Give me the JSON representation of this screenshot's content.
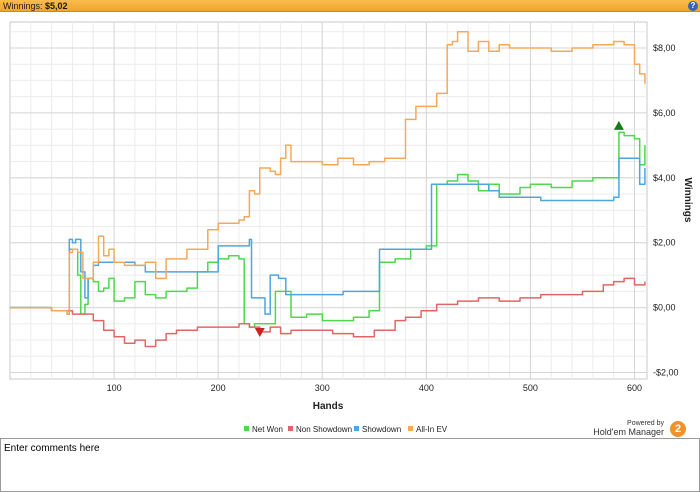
{
  "header": {
    "label": "Winnings:",
    "value": "$5,02",
    "help": "?"
  },
  "comments": {
    "placeholder": "Enter comments here"
  },
  "branding": {
    "powered_by": "Powered by",
    "product": "Hold'em Manager",
    "logo_text": "2"
  },
  "chart_data": {
    "type": "line",
    "xlabel": "Hands",
    "ylabel": "Winnings",
    "xlim": [
      0,
      612
    ],
    "ylim": [
      -2.2,
      8.8
    ],
    "x_ticks": [
      100,
      200,
      300,
      400,
      500,
      600
    ],
    "y_ticks": [
      -2,
      0,
      2,
      4,
      6,
      8
    ],
    "y_tick_labels": [
      "-$2,00",
      "$0,00",
      "$2,00",
      "$4,00",
      "$6,00",
      "$8,00"
    ],
    "x_tick_labels": [
      "100",
      "200",
      "300",
      "400",
      "500",
      "600"
    ],
    "grid": true,
    "legend_position": "bottom",
    "series": [
      {
        "name": "Net Won",
        "color": "#4cd94c",
        "x": [
          0,
          20,
          40,
          55,
          57,
          60,
          65,
          68,
          72,
          75,
          80,
          85,
          90,
          95,
          100,
          110,
          120,
          130,
          140,
          150,
          160,
          170,
          180,
          190,
          200,
          210,
          220,
          225,
          230,
          235,
          240,
          255,
          270,
          285,
          300,
          330,
          345,
          355,
          370,
          385,
          400,
          410,
          420,
          430,
          440,
          450,
          460,
          470,
          480,
          490,
          500,
          520,
          540,
          560,
          580,
          585,
          590,
          600,
          605,
          610
        ],
        "y": [
          0.0,
          0.0,
          -0.1,
          -0.2,
          1.8,
          1.8,
          1.0,
          -0.2,
          0.1,
          0.9,
          0.8,
          0.5,
          0.6,
          0.9,
          0.2,
          0.3,
          0.8,
          0.4,
          0.3,
          0.5,
          0.5,
          0.6,
          1.1,
          1.4,
          1.5,
          1.6,
          1.5,
          -0.5,
          -0.6,
          -0.5,
          -0.5,
          0.5,
          -0.3,
          -0.2,
          -0.4,
          -0.3,
          -0.1,
          1.4,
          1.5,
          1.8,
          1.9,
          3.8,
          3.9,
          4.1,
          3.9,
          3.6,
          3.8,
          3.5,
          3.5,
          3.7,
          3.8,
          3.7,
          3.9,
          4.0,
          4.0,
          5.4,
          5.3,
          5.2,
          4.4,
          5.0
        ]
      },
      {
        "name": "Non Showdown",
        "color": "#e06666",
        "x": [
          0,
          20,
          40,
          60,
          80,
          90,
          100,
          110,
          120,
          130,
          140,
          150,
          160,
          180,
          200,
          220,
          230,
          240,
          250,
          260,
          270,
          290,
          310,
          330,
          350,
          370,
          380,
          395,
          410,
          430,
          450,
          470,
          490,
          510,
          530,
          550,
          570,
          580,
          590,
          600,
          610
        ],
        "y": [
          0.0,
          0.0,
          -0.1,
          -0.2,
          -0.4,
          -0.7,
          -0.9,
          -1.1,
          -1.0,
          -1.2,
          -1.0,
          -0.8,
          -0.7,
          -0.6,
          -0.6,
          -0.5,
          -0.6,
          -0.75,
          -0.6,
          -0.8,
          -0.7,
          -0.7,
          -0.8,
          -0.9,
          -0.7,
          -0.4,
          -0.3,
          -0.1,
          0.1,
          0.2,
          0.3,
          0.2,
          0.3,
          0.4,
          0.4,
          0.5,
          0.7,
          0.8,
          0.9,
          0.7,
          0.8
        ]
      },
      {
        "name": "Showdown",
        "color": "#4ea6dc",
        "x": [
          0,
          20,
          40,
          55,
          57,
          60,
          63,
          68,
          72,
          75,
          80,
          85,
          100,
          120,
          130,
          180,
          200,
          230,
          232,
          240,
          245,
          250,
          258,
          265,
          280,
          300,
          320,
          345,
          355,
          370,
          390,
          405,
          420,
          460,
          470,
          490,
          510,
          530,
          550,
          570,
          580,
          585,
          600,
          605,
          610
        ],
        "y": [
          0.0,
          0.0,
          -0.1,
          -0.2,
          2.1,
          2.0,
          2.1,
          1.1,
          0.3,
          0.9,
          1.3,
          1.4,
          1.4,
          1.3,
          1.1,
          1.1,
          1.9,
          2.1,
          0.3,
          0.3,
          -0.2,
          1.0,
          0.9,
          0.4,
          0.4,
          0.4,
          0.5,
          0.5,
          1.8,
          1.8,
          1.8,
          3.8,
          3.8,
          3.6,
          3.4,
          3.4,
          3.3,
          3.3,
          3.3,
          3.3,
          3.4,
          4.6,
          4.6,
          3.8,
          4.3
        ]
      },
      {
        "name": "All-In EV",
        "color": "#f5a85a",
        "x": [
          0,
          20,
          40,
          55,
          57,
          60,
          65,
          70,
          80,
          85,
          90,
          95,
          100,
          110,
          120,
          130,
          140,
          150,
          160,
          170,
          180,
          190,
          200,
          210,
          220,
          225,
          230,
          235,
          240,
          250,
          255,
          260,
          265,
          270,
          285,
          300,
          315,
          330,
          345,
          360,
          370,
          380,
          390,
          410,
          420,
          425,
          430,
          440,
          450,
          460,
          470,
          480,
          500,
          520,
          540,
          560,
          580,
          590,
          600,
          605,
          610
        ],
        "y": [
          0.0,
          0.0,
          -0.1,
          -0.2,
          1.7,
          1.8,
          1.7,
          0.9,
          1.4,
          2.2,
          1.6,
          1.8,
          1.4,
          1.3,
          1.3,
          1.4,
          0.9,
          1.5,
          1.5,
          1.8,
          1.8,
          2.4,
          2.6,
          2.6,
          2.7,
          2.8,
          3.6,
          3.5,
          4.3,
          4.2,
          4.1,
          4.6,
          5.0,
          4.5,
          4.5,
          4.4,
          4.6,
          4.4,
          4.5,
          4.6,
          4.6,
          5.8,
          6.2,
          6.6,
          8.1,
          8.2,
          8.5,
          7.9,
          8.2,
          7.9,
          8.1,
          8.0,
          8.0,
          7.9,
          8.0,
          8.1,
          8.2,
          8.1,
          7.5,
          7.2,
          6.9
        ]
      }
    ],
    "markers": [
      {
        "type": "max",
        "shape": "triangle-up",
        "color": "#1a7a1a",
        "x": 585,
        "y": 5.6
      },
      {
        "type": "min",
        "shape": "triangle-down",
        "color": "#cc1f1f",
        "x": 240,
        "y": -0.75
      }
    ]
  }
}
